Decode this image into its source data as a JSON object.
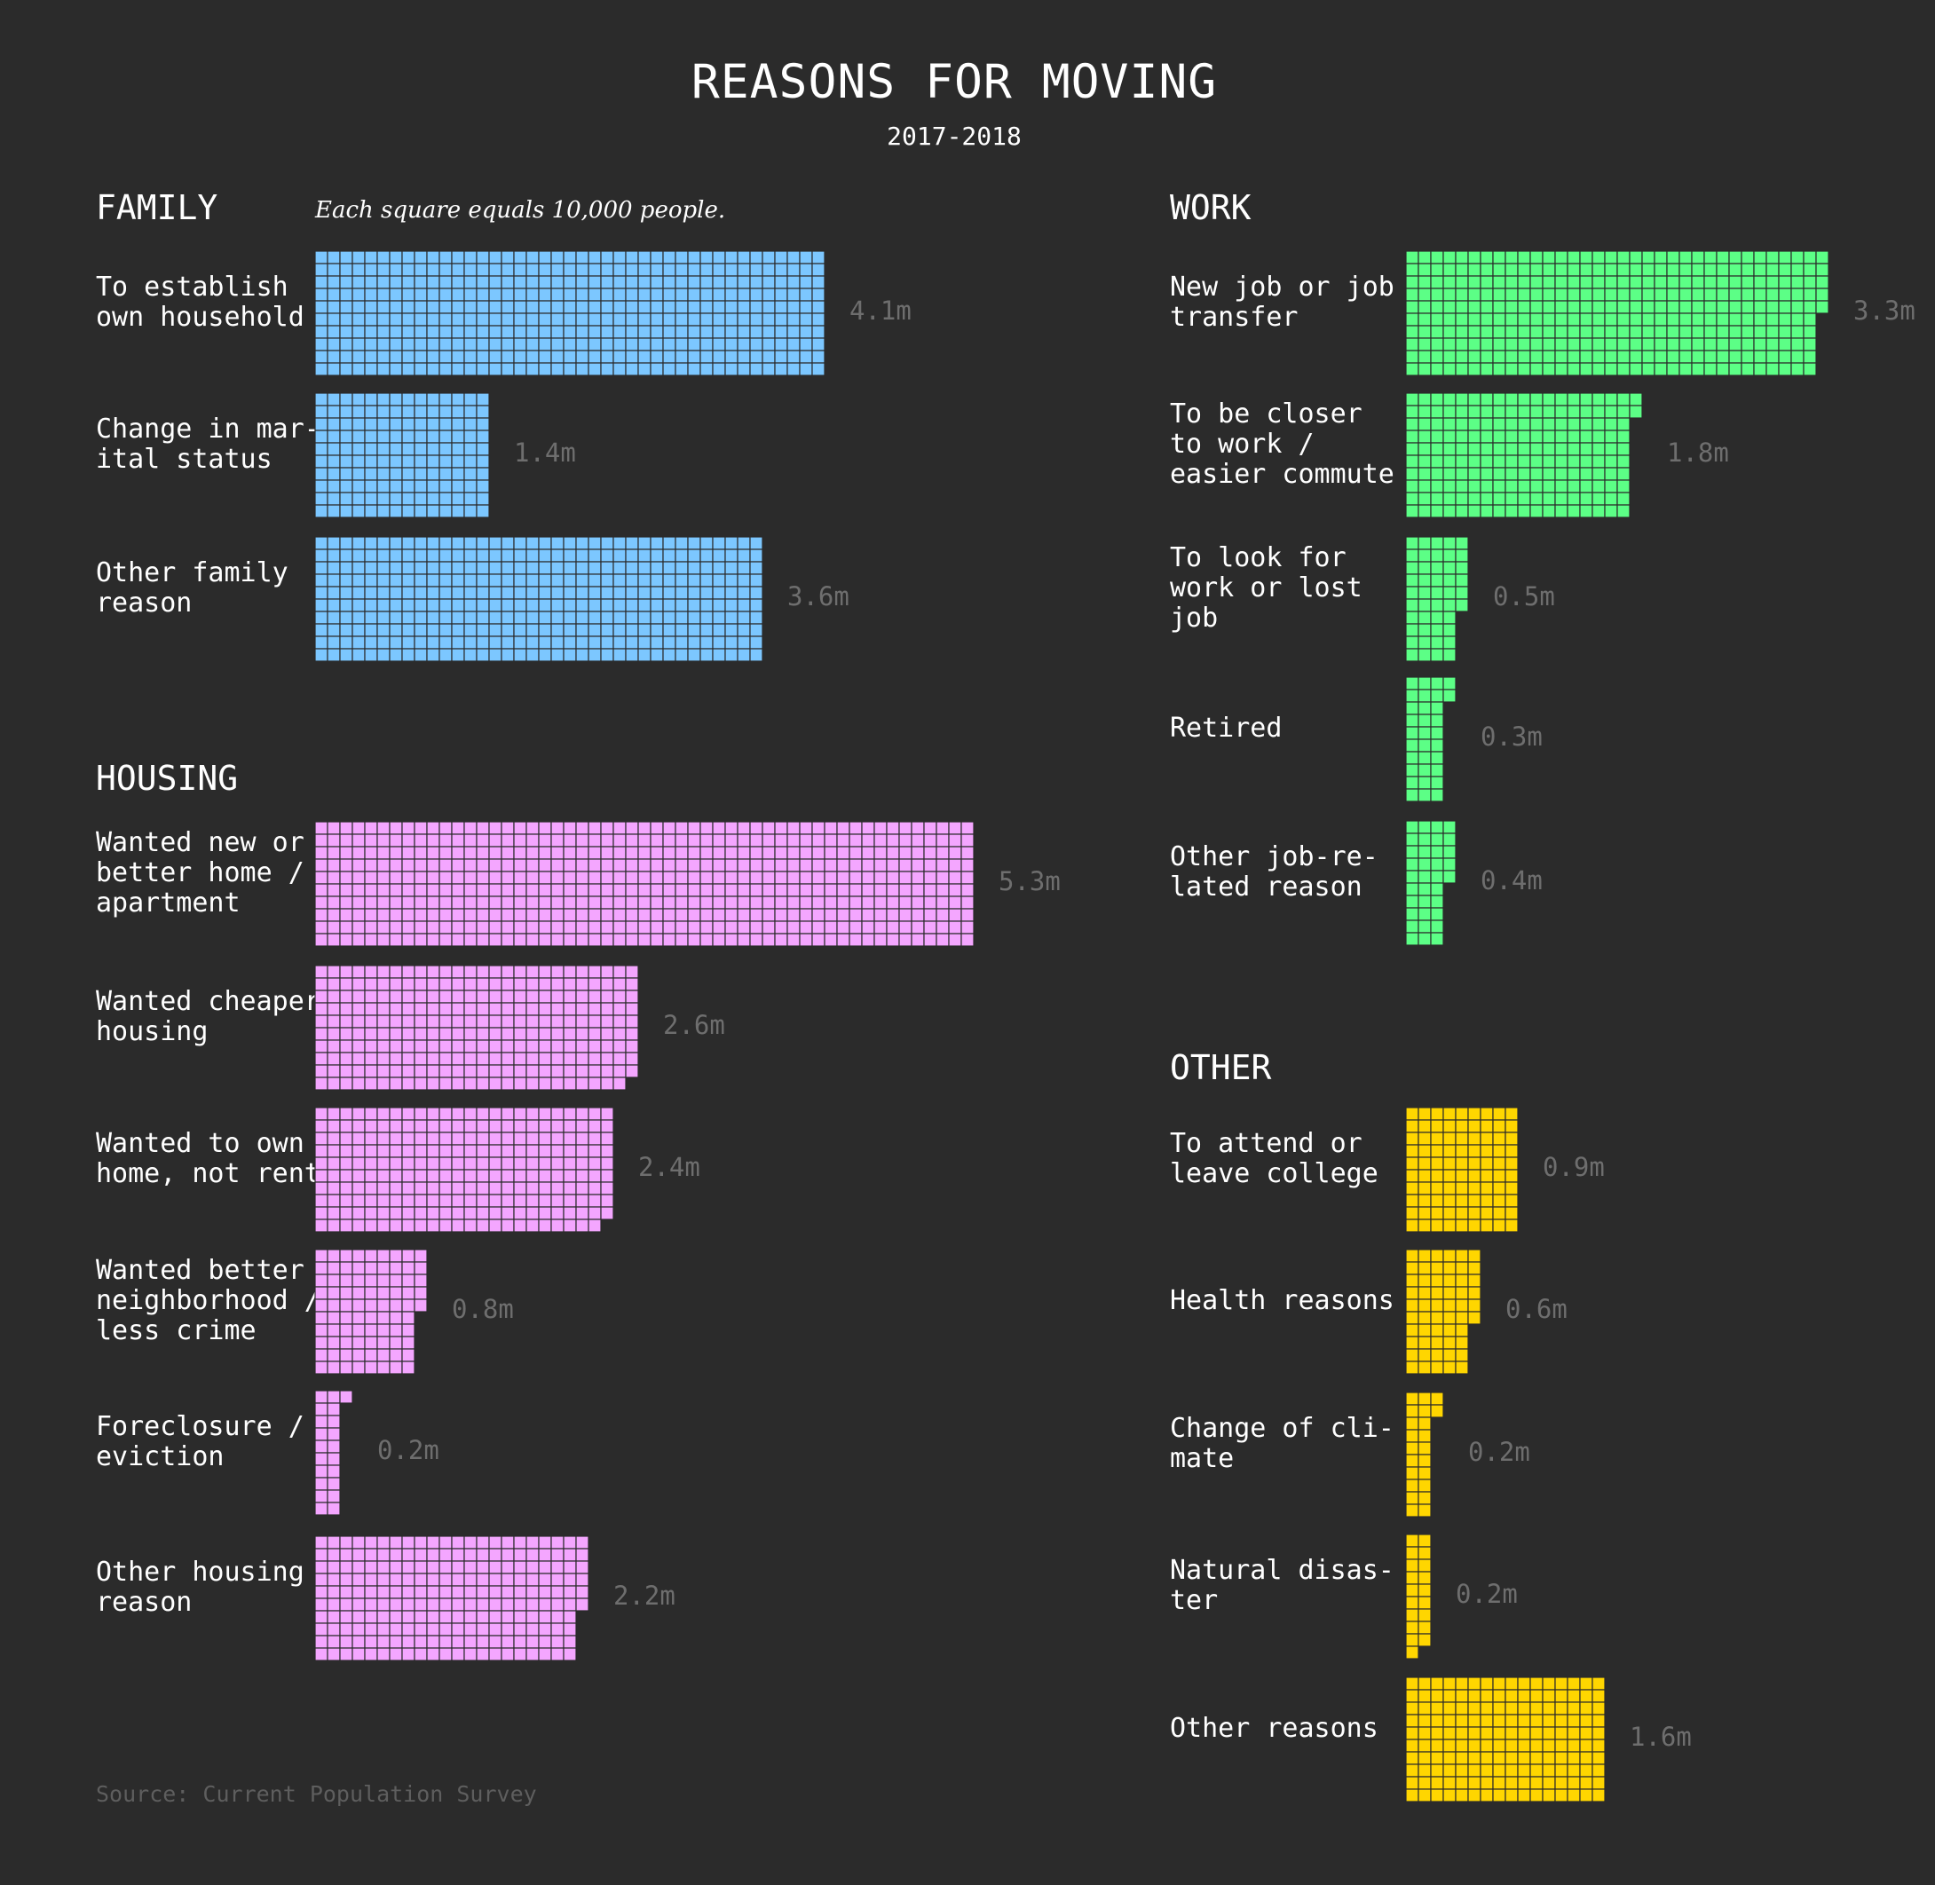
{
  "title": "REASONS FOR MOVING",
  "subtitle": "2017-2018",
  "note": "Each square equals 10,000 people.",
  "source": "Source: Current Population Survey",
  "colors": {
    "background": "#2b2b2b",
    "family": "#7cc7ff",
    "housing": "#f4a6ff",
    "work": "#5cff86",
    "other": "#ffd600",
    "grid_line": "#2b2b2b",
    "value_text": "#6e6e6e"
  },
  "chart_data": {
    "type": "waffle",
    "unit": "Each square equals 10,000 people.",
    "groups": [
      {
        "name": "FAMILY",
        "color_key": "family",
        "items": [
          {
            "label": "To establish\nown household",
            "squares": 410,
            "value_label": "4.1m"
          },
          {
            "label": "Change in mar-\nital status",
            "squares": 140,
            "value_label": "1.4m"
          },
          {
            "label": "Other family\nreason",
            "squares": 360,
            "value_label": "3.6m"
          }
        ]
      },
      {
        "name": "HOUSING",
        "color_key": "housing",
        "items": [
          {
            "label": "Wanted new or\nbetter home /\napartment",
            "squares": 530,
            "value_label": "5.3m"
          },
          {
            "label": "Wanted cheaper\nhousing",
            "squares": 259,
            "value_label": "2.6m"
          },
          {
            "label": "Wanted to own\nhome, not rent",
            "squares": 239,
            "value_label": "2.4m"
          },
          {
            "label": "Wanted better\nneighborhood /\nless crime",
            "squares": 85,
            "value_label": "0.8m"
          },
          {
            "label": "Foreclosure /\neviction",
            "squares": 21,
            "value_label": "0.2m"
          },
          {
            "label": "Other housing\nreason",
            "squares": 216,
            "value_label": "2.2m"
          }
        ]
      },
      {
        "name": "WORK",
        "color_key": "work",
        "items": [
          {
            "label": "New job or job\ntransfer",
            "squares": 335,
            "value_label": "3.3m"
          },
          {
            "label": "To be closer\nto work /\neasier commute",
            "squares": 182,
            "value_label": "1.8m"
          },
          {
            "label": "To look for\nwork or lost\njob",
            "squares": 46,
            "value_label": "0.5m"
          },
          {
            "label": "Retired",
            "squares": 32,
            "value_label": "0.3m"
          },
          {
            "label": "Other job-re-\nlated reason",
            "squares": 35,
            "value_label": "0.4m"
          }
        ]
      },
      {
        "name": "OTHER",
        "color_key": "other",
        "items": [
          {
            "label": "To attend or\nleave college",
            "squares": 90,
            "value_label": "0.9m"
          },
          {
            "label": "Health reasons",
            "squares": 56,
            "value_label": "0.6m"
          },
          {
            "label": "Change of cli-\nmate",
            "squares": 22,
            "value_label": "0.2m"
          },
          {
            "label": "Natural disas-\nter",
            "squares": 19,
            "value_label": "0.2m"
          },
          {
            "label": "Other reasons",
            "squares": 160,
            "value_label": "1.6m"
          }
        ]
      }
    ]
  }
}
